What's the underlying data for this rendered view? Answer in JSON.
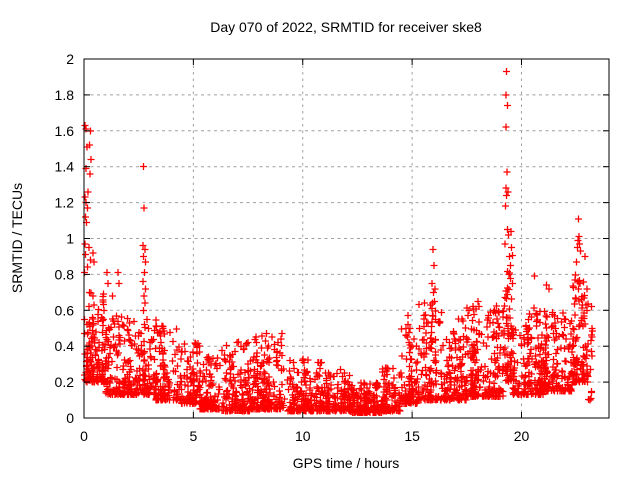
{
  "chart_data": {
    "type": "scatter",
    "title": "Day 070 of 2022, SRMTID for receiver ske8",
    "xlabel": "GPS time / hours",
    "ylabel": "SRMTID / TECUs",
    "xlim": [
      0,
      24
    ],
    "ylim": [
      0,
      2
    ],
    "xtick_values": [
      0,
      5,
      10,
      15,
      20
    ],
    "xtick_labels": [
      "0",
      "5",
      "10",
      "15",
      "20"
    ],
    "ytick_values": [
      0,
      0.2,
      0.4,
      0.6,
      0.8,
      1,
      1.2,
      1.4,
      1.6,
      1.8,
      2
    ],
    "ytick_labels": [
      "0",
      "0.2",
      "0.4",
      "0.6",
      "0.8",
      "1",
      "1.2",
      "1.4",
      "1.6",
      "1.8",
      "2"
    ],
    "grid": true,
    "grid_color": "#a0a0a0",
    "legend": "none",
    "marker": "plus",
    "marker_color": "#ff0000",
    "marker_size_px": 7,
    "axis_color": "#000000",
    "background_color": "#ffffff",
    "density_bands": [
      {
        "t0": 0.0,
        "t1": 1.0,
        "n": 150,
        "vmin": 0.2,
        "vmax": 0.7,
        "shape": 2.0
      },
      {
        "t0": 1.0,
        "t1": 2.2,
        "n": 150,
        "vmin": 0.13,
        "vmax": 0.58,
        "shape": 2.2
      },
      {
        "t0": 2.2,
        "t1": 3.3,
        "n": 110,
        "vmin": 0.13,
        "vmax": 0.55,
        "shape": 2.2
      },
      {
        "t0": 3.3,
        "t1": 4.4,
        "n": 115,
        "vmin": 0.1,
        "vmax": 0.52,
        "shape": 2.2
      },
      {
        "t0": 4.4,
        "t1": 5.3,
        "n": 100,
        "vmin": 0.08,
        "vmax": 0.42,
        "shape": 2.2
      },
      {
        "t0": 5.3,
        "t1": 6.3,
        "n": 110,
        "vmin": 0.05,
        "vmax": 0.35,
        "shape": 2.2
      },
      {
        "t0": 6.3,
        "t1": 7.6,
        "n": 150,
        "vmin": 0.04,
        "vmax": 0.43,
        "shape": 2.4
      },
      {
        "t0": 7.6,
        "t1": 9.3,
        "n": 190,
        "vmin": 0.05,
        "vmax": 0.46,
        "shape": 2.4
      },
      {
        "t0": 9.3,
        "t1": 11.0,
        "n": 190,
        "vmin": 0.04,
        "vmax": 0.33,
        "shape": 2.6
      },
      {
        "t0": 11.0,
        "t1": 12.2,
        "n": 130,
        "vmin": 0.04,
        "vmax": 0.27,
        "shape": 2.6
      },
      {
        "t0": 12.2,
        "t1": 13.6,
        "n": 160,
        "vmin": 0.03,
        "vmax": 0.2,
        "shape": 2.4
      },
      {
        "t0": 13.6,
        "t1": 14.45,
        "n": 95,
        "vmin": 0.04,
        "vmax": 0.28,
        "shape": 2.4
      },
      {
        "t0": 14.45,
        "t1": 15.25,
        "n": 95,
        "vmin": 0.08,
        "vmax": 0.5,
        "shape": 2.2
      },
      {
        "t0": 15.25,
        "t1": 16.35,
        "n": 125,
        "vmin": 0.1,
        "vmax": 0.66,
        "shape": 2.4
      },
      {
        "t0": 16.35,
        "t1": 17.5,
        "n": 135,
        "vmin": 0.1,
        "vmax": 0.56,
        "shape": 2.2
      },
      {
        "t0": 17.5,
        "t1": 19.15,
        "n": 195,
        "vmin": 0.12,
        "vmax": 0.63,
        "shape": 2.2
      },
      {
        "t0": 19.15,
        "t1": 19.6,
        "n": 65,
        "vmin": 0.2,
        "vmax": 0.95,
        "shape": 1.7
      },
      {
        "t0": 19.6,
        "t1": 21.0,
        "n": 175,
        "vmin": 0.13,
        "vmax": 0.62,
        "shape": 2.2
      },
      {
        "t0": 21.0,
        "t1": 22.3,
        "n": 155,
        "vmin": 0.15,
        "vmax": 0.6,
        "shape": 2.2
      },
      {
        "t0": 22.3,
        "t1": 23.05,
        "n": 105,
        "vmin": 0.2,
        "vmax": 0.8,
        "shape": 2.0
      },
      {
        "t0": 23.05,
        "t1": 23.25,
        "n": 14,
        "vmin": 0.1,
        "vmax": 0.55,
        "shape": 1.6
      }
    ],
    "outlier_points": [
      [
        0.05,
        1.63
      ],
      [
        0.09,
        1.61
      ],
      [
        0.3,
        1.6
      ],
      [
        0.13,
        1.51
      ],
      [
        0.25,
        1.52
      ],
      [
        0.33,
        1.44
      ],
      [
        0.08,
        1.39
      ],
      [
        0.28,
        1.36
      ],
      [
        0.18,
        1.26
      ],
      [
        0.05,
        1.23
      ],
      [
        0.1,
        1.2
      ],
      [
        0.16,
        1.17
      ],
      [
        0.07,
        1.12
      ],
      [
        0.12,
        1.09
      ],
      [
        0.04,
        0.97
      ],
      [
        0.22,
        0.95
      ],
      [
        0.06,
        0.91
      ],
      [
        0.3,
        0.88
      ],
      [
        0.15,
        0.84
      ],
      [
        0.03,
        0.81
      ],
      [
        0.4,
        0.92
      ],
      [
        0.45,
        0.87
      ],
      [
        0.02,
        0.47
      ],
      [
        1.05,
        0.81
      ],
      [
        1.1,
        0.75
      ],
      [
        1.55,
        0.81
      ],
      [
        1.6,
        0.75
      ],
      [
        1.3,
        0.68
      ],
      [
        2.72,
        1.4
      ],
      [
        2.75,
        1.17
      ],
      [
        2.7,
        0.96
      ],
      [
        2.78,
        0.94
      ],
      [
        2.73,
        0.9
      ],
      [
        2.8,
        0.87
      ],
      [
        2.76,
        0.81
      ],
      [
        2.7,
        0.76
      ],
      [
        2.82,
        0.72
      ],
      [
        2.74,
        0.68
      ],
      [
        2.78,
        0.64
      ],
      [
        2.72,
        0.6
      ],
      [
        7.0,
        0.42
      ],
      [
        7.5,
        0.42
      ],
      [
        8.35,
        0.47
      ],
      [
        8.3,
        0.43
      ],
      [
        8.6,
        0.45
      ],
      [
        9.05,
        0.47
      ],
      [
        9.0,
        0.44
      ],
      [
        10.0,
        0.33
      ],
      [
        10.7,
        0.31
      ],
      [
        14.8,
        0.57
      ],
      [
        14.82,
        0.52
      ],
      [
        14.78,
        0.45
      ],
      [
        14.85,
        0.42
      ],
      [
        15.95,
        0.94
      ],
      [
        16.0,
        0.85
      ],
      [
        15.9,
        0.75
      ],
      [
        16.05,
        0.72
      ],
      [
        15.98,
        0.7
      ],
      [
        16.02,
        0.65
      ],
      [
        15.92,
        0.57
      ],
      [
        16.08,
        0.55
      ],
      [
        17.6,
        0.6
      ],
      [
        17.55,
        0.57
      ],
      [
        18.0,
        0.65
      ],
      [
        18.05,
        0.62
      ],
      [
        18.5,
        0.57
      ],
      [
        18.55,
        0.53
      ],
      [
        19.32,
        1.93
      ],
      [
        19.3,
        1.8
      ],
      [
        19.35,
        1.74
      ],
      [
        19.28,
        1.62
      ],
      [
        19.33,
        1.37
      ],
      [
        19.3,
        1.28
      ],
      [
        19.38,
        1.26
      ],
      [
        19.32,
        1.24
      ],
      [
        19.27,
        1.18
      ],
      [
        19.35,
        1.05
      ],
      [
        19.4,
        1.02
      ],
      [
        19.52,
        1.04
      ],
      [
        19.55,
        0.95
      ],
      [
        19.25,
        0.97
      ],
      [
        19.45,
        0.9
      ],
      [
        19.5,
        0.85
      ],
      [
        19.42,
        0.8
      ],
      [
        19.58,
        0.75
      ],
      [
        20.6,
        0.79
      ],
      [
        21.15,
        0.74
      ],
      [
        21.25,
        0.72
      ],
      [
        22.6,
        1.11
      ],
      [
        22.62,
        1.01
      ],
      [
        22.58,
        0.99
      ],
      [
        22.65,
        0.97
      ],
      [
        22.55,
        0.95
      ],
      [
        22.7,
        0.93
      ],
      [
        22.52,
        0.87
      ],
      [
        22.68,
        0.75
      ],
      [
        22.6,
        0.72
      ],
      [
        22.75,
        0.66
      ],
      [
        22.9,
        0.9
      ],
      [
        22.95,
        0.63
      ],
      [
        23.0,
        0.6
      ],
      [
        23.2,
        0.62
      ],
      [
        23.22,
        0.5
      ]
    ]
  }
}
